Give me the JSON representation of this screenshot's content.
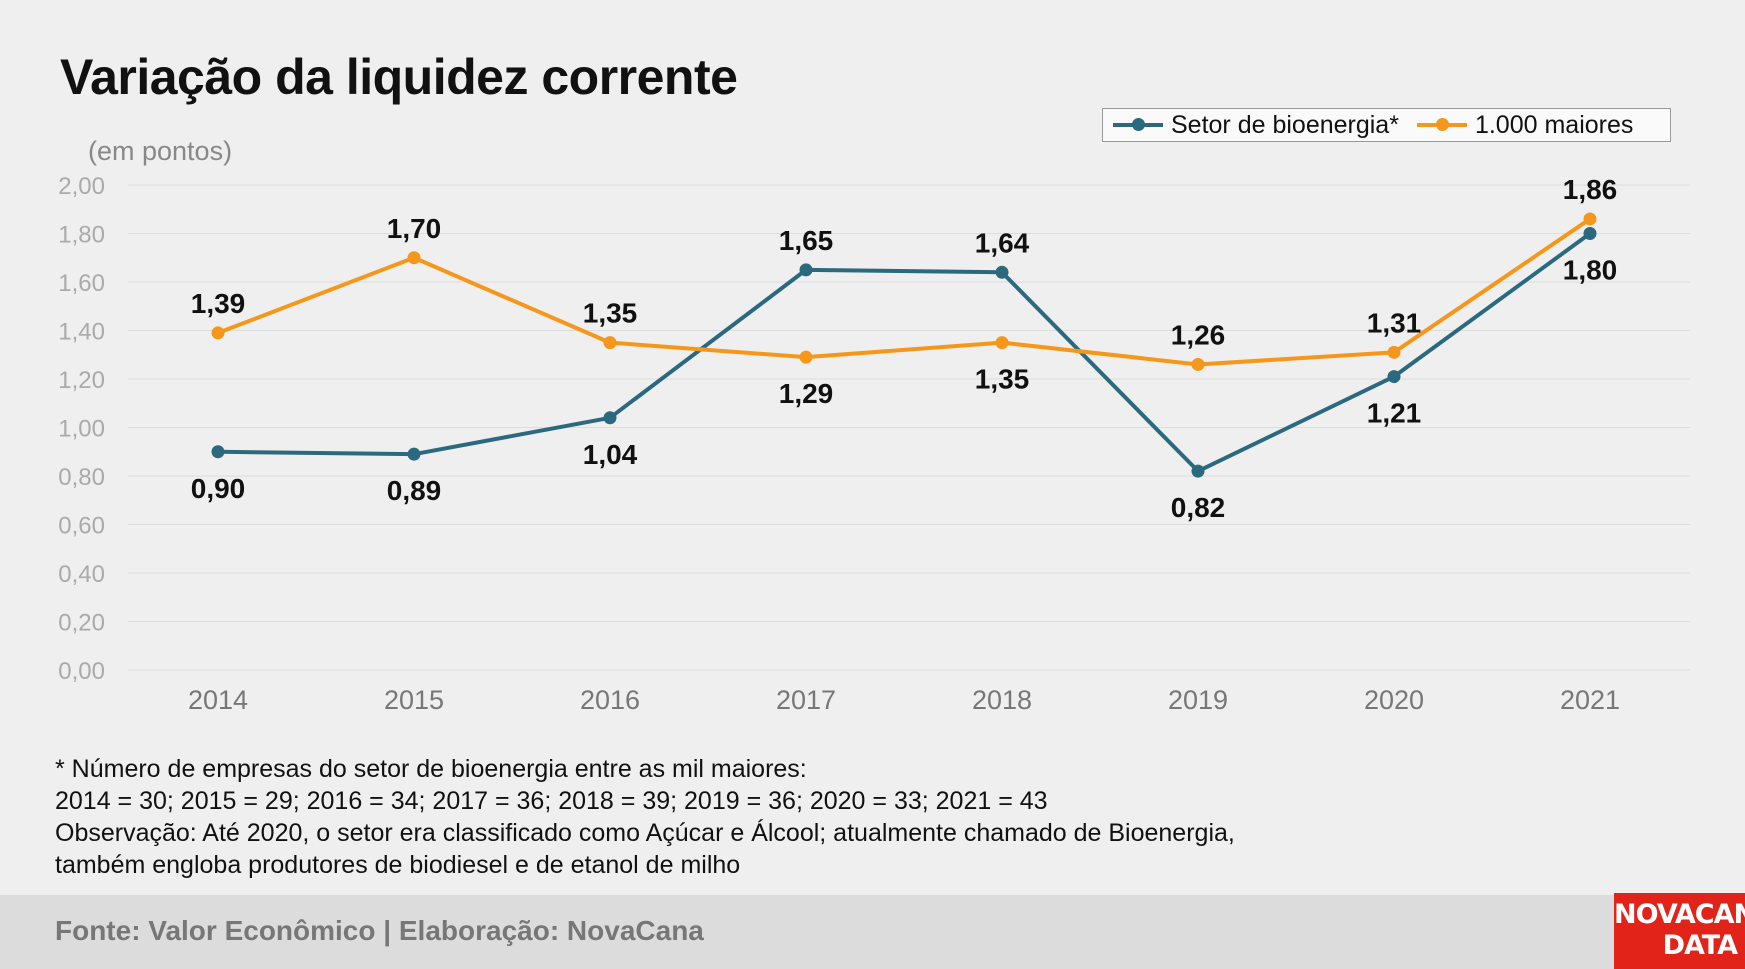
{
  "title": "Variação da liquidez corrente",
  "unit_label": "(em pontos)",
  "legend": {
    "series1": "Setor de bioenergia*",
    "series2": "1.000 maiores"
  },
  "footnotes": [
    "* Número de empresas do setor de bioenergia entre as mil maiores:",
    "2014 = 30; 2015 = 29; 2016 = 34; 2017 = 36; 2018 = 39; 2019 = 36; 2020 = 33; 2021 = 43",
    "Observação: Até 2020, o setor era classificado como Açúcar e Álcool; atualmente chamado de Bioenergia,",
    "também engloba produtores de biodiesel e de etanol de milho"
  ],
  "source": "Fonte: Valor Econômico | Elaboração: NovaCana",
  "logo": {
    "line1": "NOVACANA",
    "line2": "DATA"
  },
  "colors": {
    "bioenergia": "#2b6a7e",
    "maiores": "#f5971b",
    "logo_bg": "#e2231a",
    "background": "#efefef"
  },
  "chart_data": {
    "type": "line",
    "title": "Variação da liquidez corrente",
    "ylabel": "(em pontos)",
    "xlabel": "",
    "categories": [
      "2014",
      "2015",
      "2016",
      "2017",
      "2018",
      "2019",
      "2020",
      "2021"
    ],
    "ylim": [
      0,
      2
    ],
    "yticks": [
      "0,00",
      "0,20",
      "0,40",
      "0,60",
      "0,80",
      "1,00",
      "1,20",
      "1,40",
      "1,60",
      "1,80",
      "2,00"
    ],
    "grid": true,
    "legend_position": "top-right",
    "series": [
      {
        "name": "Setor de bioenergia*",
        "color": "#2b6a7e",
        "values": [
          0.9,
          0.89,
          1.04,
          1.65,
          1.64,
          0.82,
          1.21,
          1.8
        ],
        "labels": [
          "0,90",
          "0,89",
          "1,04",
          "1,65",
          "1,64",
          "0,82",
          "1,21",
          "1,80"
        ]
      },
      {
        "name": "1.000 maiores",
        "color": "#f5971b",
        "values": [
          1.39,
          1.7,
          1.35,
          1.29,
          1.35,
          1.26,
          1.31,
          1.86
        ],
        "labels": [
          "1,39",
          "1,70",
          "1,35",
          "1,29",
          "1,35",
          "1,26",
          "1,31",
          "1,86"
        ]
      }
    ]
  }
}
